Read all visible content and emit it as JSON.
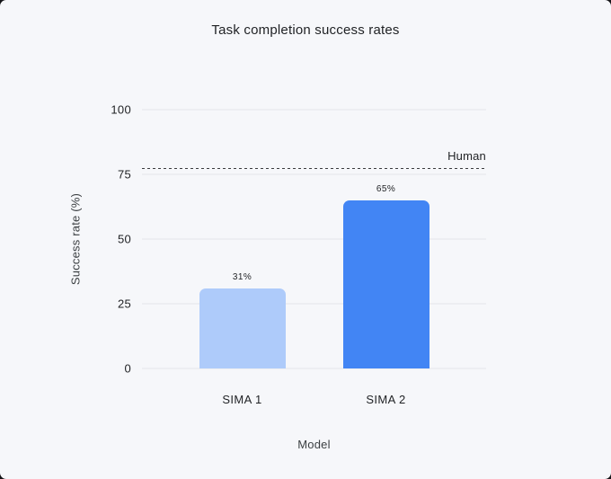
{
  "chart_data": {
    "type": "bar",
    "title": "Task completion success rates",
    "categories": [
      "SIMA 1",
      "SIMA 2"
    ],
    "values": [
      31,
      65
    ],
    "value_labels": [
      "31%",
      "65%"
    ],
    "xlabel": "Model",
    "ylabel": "Success rate (%)",
    "yticks": [
      0,
      25,
      50,
      75,
      100
    ],
    "ylim": [
      0,
      100
    ],
    "grid": true,
    "legend": "none",
    "reference_line": {
      "label": "Human",
      "value": 77
    },
    "bar_colors": [
      "#AECBFA",
      "#4285F4"
    ],
    "colors": {
      "background": "#F6F7FA",
      "gridline": "#E4E5E9",
      "text": "#1F2124",
      "reference_line": "#3A3B3E"
    }
  }
}
